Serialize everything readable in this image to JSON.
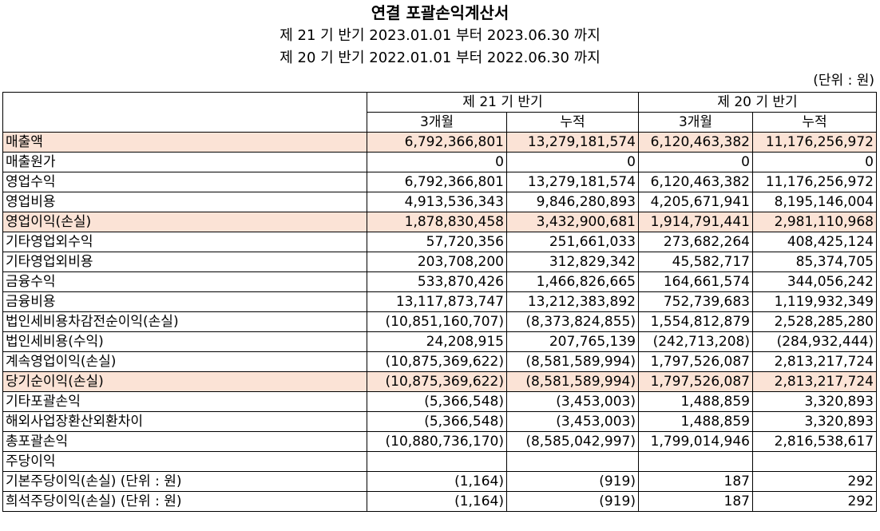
{
  "title": "연결 포괄손익계산서",
  "periods": [
    "제 21 기 반기 2023.01.01 부터 2023.06.30 까지",
    "제 20 기 반기 2022.01.01 부터 2022.06.30 까지"
  ],
  "unit": "(단위 : 원)",
  "header": {
    "period_a": "제 21 기 반기",
    "period_b": "제 20 기 반기",
    "sub": [
      "3개월",
      "누적",
      "3개월",
      "누적"
    ]
  },
  "rows": [
    {
      "label": "매출액",
      "values": [
        "6,792,366,801",
        "13,279,181,574",
        "6,120,463,382",
        "11,176,256,972"
      ]
    },
    {
      "label": "매출원가",
      "values": [
        "0",
        "0",
        "0",
        "0"
      ]
    },
    {
      "label": "영업수익",
      "values": [
        "6,792,366,801",
        "13,279,181,574",
        "6,120,463,382",
        "11,176,256,972"
      ]
    },
    {
      "label": "영업비용",
      "values": [
        "4,913,536,343",
        "9,846,280,893",
        "4,205,671,941",
        "8,195,146,004"
      ]
    },
    {
      "label": "영업이익(손실)",
      "values": [
        "1,878,830,458",
        "3,432,900,681",
        "1,914,791,441",
        "2,981,110,968"
      ]
    },
    {
      "label": "기타영업외수익",
      "values": [
        "57,720,356",
        "251,661,033",
        "273,682,264",
        "408,425,124"
      ]
    },
    {
      "label": "기타영업외비용",
      "values": [
        "203,708,200",
        "312,829,342",
        "45,582,717",
        "85,374,705"
      ]
    },
    {
      "label": "금융수익",
      "values": [
        "533,870,426",
        "1,466,826,665",
        "164,661,574",
        "344,056,242"
      ]
    },
    {
      "label": "금융비용",
      "values": [
        "13,117,873,747",
        "13,212,383,892",
        "752,739,683",
        "1,119,932,349"
      ]
    },
    {
      "label": "법인세비용차감전순이익(손실)",
      "values": [
        "(10,851,160,707)",
        "(8,373,824,855)",
        "1,554,812,879",
        "2,528,285,280"
      ]
    },
    {
      "label": "법인세비용(수익)",
      "values": [
        "24,208,915",
        "207,765,139",
        "(242,713,208)",
        "(284,932,444)"
      ]
    },
    {
      "label": "계속영업이익(손실)",
      "values": [
        "(10,875,369,622)",
        "(8,581,589,994)",
        "1,797,526,087",
        "2,813,217,724"
      ]
    },
    {
      "label": "당기순이익(손실)",
      "values": [
        "(10,875,369,622)",
        "(8,581,589,994)",
        "1,797,526,087",
        "2,813,217,724"
      ]
    },
    {
      "label": "기타포괄손익",
      "values": [
        "(5,366,548)",
        "(3,453,003)",
        "1,488,859",
        "3,320,893"
      ]
    },
    {
      "label": "해외사업장환산외환차이",
      "values": [
        "(5,366,548)",
        "(3,453,003)",
        "1,488,859",
        "3,320,893"
      ]
    },
    {
      "label": "총포괄손익",
      "values": [
        "(10,880,736,170)",
        "(8,585,042,997)",
        "1,799,014,946",
        "2,816,538,617"
      ]
    },
    {
      "label": "주당이익",
      "values": [
        "",
        "",
        "",
        ""
      ]
    },
    {
      "label": "기본주당이익(손실) (단위 : 원)",
      "values": [
        "(1,164)",
        "(919)",
        "187",
        "292"
      ]
    },
    {
      "label": "희석주당이익(손실) (단위 : 원)",
      "values": [
        "(1,164)",
        "(919)",
        "187",
        "292"
      ]
    }
  ],
  "colors": {
    "highlight": "#fbe3d6",
    "border": "#000000"
  }
}
